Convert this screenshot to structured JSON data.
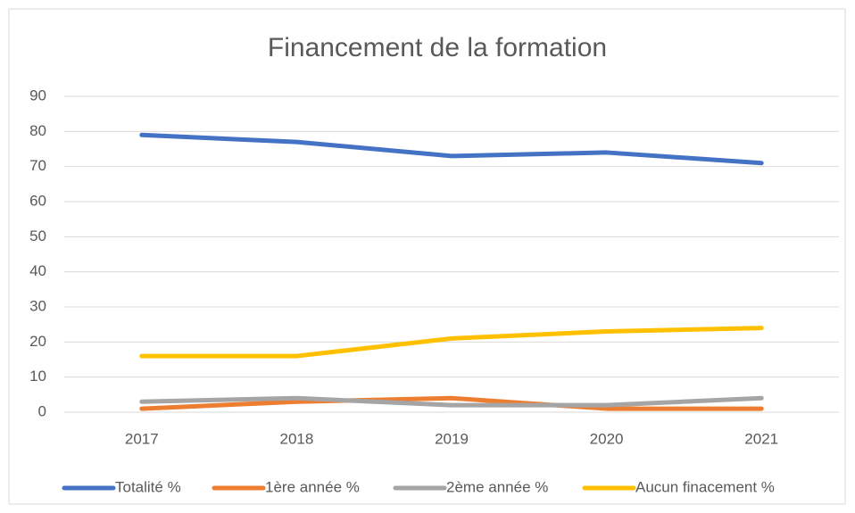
{
  "chart_data": {
    "type": "line",
    "title": "Financement  de la formation",
    "categories": [
      "2017",
      "2018",
      "2019",
      "2020",
      "2021"
    ],
    "series": [
      {
        "name": "Totalité %",
        "color": "#4472c4",
        "values": [
          79,
          77,
          73,
          74,
          71
        ]
      },
      {
        "name": "1ère année %",
        "color": "#ed7d31",
        "values": [
          1,
          3,
          4,
          1,
          1
        ]
      },
      {
        "name": "2ème année %",
        "color": "#a5a5a5",
        "values": [
          3,
          4,
          2,
          2,
          4
        ]
      },
      {
        "name": "Aucun finacement %",
        "color": "#ffc000",
        "values": [
          16,
          16,
          21,
          23,
          24
        ]
      }
    ],
    "ylim": [
      0,
      90
    ],
    "yticks": [
      0,
      10,
      20,
      30,
      40,
      50,
      60,
      70,
      80,
      90
    ],
    "grid": true,
    "legend": "bottom"
  }
}
